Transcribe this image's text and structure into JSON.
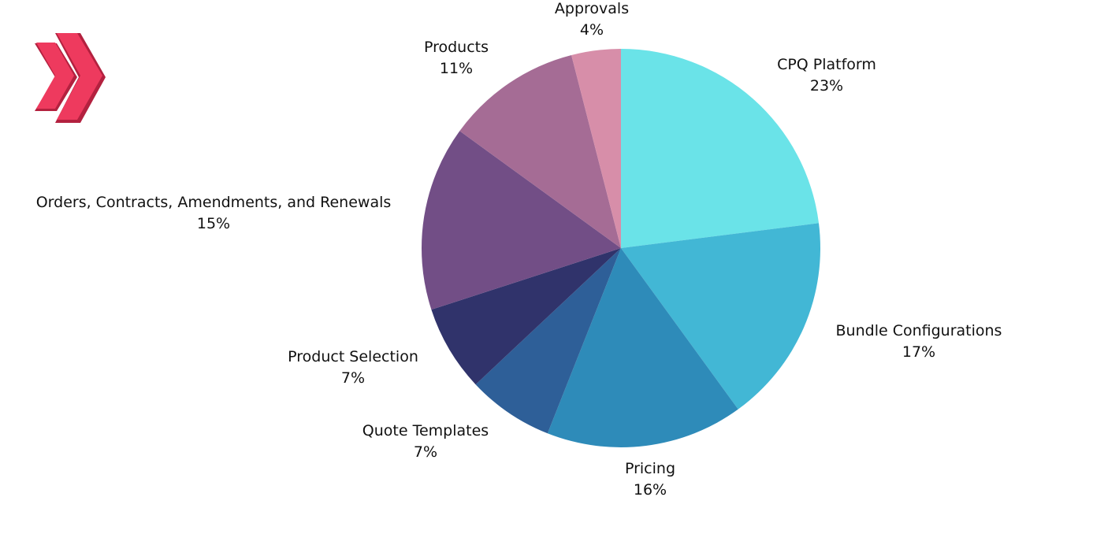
{
  "brand": {
    "logo_icon": "double-chevron-right-icon",
    "logo_color": "#e8365b"
  },
  "chart_data": {
    "type": "pie",
    "title": "",
    "start_angle_deg": 0,
    "direction": "clockwise",
    "slices": [
      {
        "label": "CPQ Platform",
        "value": 23,
        "display": "23%",
        "color": "#6ae3e8"
      },
      {
        "label": "Bundle Configurations",
        "value": 17,
        "display": "17%",
        "color": "#42b7d5"
      },
      {
        "label": "Pricing",
        "value": 16,
        "display": "16%",
        "color": "#2e8bb9"
      },
      {
        "label": "Quote Templates",
        "value": 7,
        "display": "7%",
        "color": "#2e5f98"
      },
      {
        "label": "Product Selection",
        "value": 7,
        "display": "7%",
        "color": "#30336b"
      },
      {
        "label": "Orders, Contracts, Amendments, and Renewals",
        "value": 15,
        "display": "15%",
        "color": "#724e86"
      },
      {
        "label": "Products",
        "value": 11,
        "display": "11%",
        "color": "#a56c95"
      },
      {
        "label": "Approvals",
        "value": 4,
        "display": "4%",
        "color": "#d78ea9"
      }
    ]
  }
}
